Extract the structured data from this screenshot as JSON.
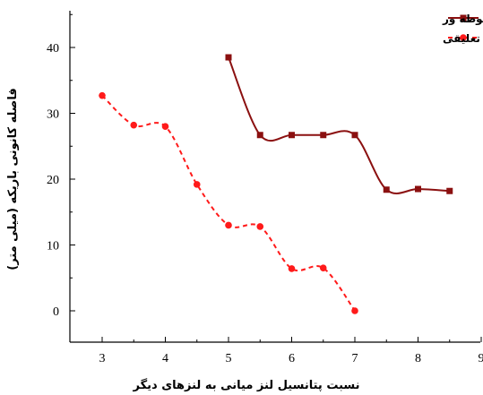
{
  "chart_data": {
    "type": "line",
    "xlabel": "نسبت پتانسیل لنز میانی به لنزهای دیگر",
    "ylabel": "فاصله کانونی باریکه (میلی متر)",
    "xlim": [
      2.5,
      9
    ],
    "ylim": [
      -5,
      45
    ],
    "xticks": [
      3,
      4,
      5,
      6,
      7,
      8,
      9
    ],
    "yticks": [
      0,
      10,
      20,
      30,
      40
    ],
    "grid": false,
    "legend_position": "top-right",
    "series": [
      {
        "name": "لنزهای غوطه ور",
        "color": "#8b1010",
        "marker": "square",
        "line_style": "solid",
        "x": [
          5,
          5.5,
          6,
          6.5,
          7,
          7.5,
          8,
          8.5
        ],
        "y": [
          38.5,
          26.7,
          26.7,
          26.7,
          26.7,
          18.4,
          18.5,
          18.2
        ]
      },
      {
        "name": "لنزهای تعلیقی",
        "color": "#ff1a1a",
        "marker": "circle",
        "line_style": "dashed",
        "x": [
          3,
          3.5,
          4,
          4.5,
          5,
          5.5,
          6,
          6.5,
          7
        ],
        "y": [
          32.7,
          28.2,
          28.0,
          19.2,
          13.0,
          12.8,
          6.4,
          6.5,
          0
        ]
      }
    ]
  }
}
